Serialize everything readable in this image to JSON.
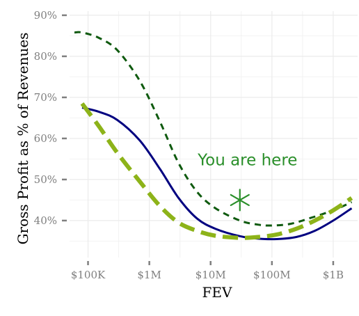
{
  "chart_data": {
    "type": "line",
    "title": "",
    "xlabel": "FEV",
    "ylabel": "Gross Profit as % of Revenues",
    "x_scale": "log10",
    "xlim": [
      50000,
      2500000000
    ],
    "ylim": [
      31,
      91
    ],
    "x_ticks": [
      {
        "value": 100000,
        "label": "$100K"
      },
      {
        "value": 1000000,
        "label": "$1M"
      },
      {
        "value": 10000000,
        "label": "$10M"
      },
      {
        "value": 100000000,
        "label": "$100M"
      },
      {
        "value": 1000000000,
        "label": "$1B"
      }
    ],
    "y_ticks": [
      {
        "value": 40,
        "label": "40%"
      },
      {
        "value": 50,
        "label": "50%"
      },
      {
        "value": 60,
        "label": "60%"
      },
      {
        "value": 70,
        "label": "70%"
      },
      {
        "value": 80,
        "label": "80%"
      },
      {
        "value": 90,
        "label": "90%"
      }
    ],
    "grid": true,
    "series": [
      {
        "style": "dashed",
        "color": "#0f5a0f",
        "x": [
          60000,
          80000,
          150000,
          300000,
          700000,
          1500000,
          3000000,
          6000000,
          12000000,
          30000000,
          60000000,
          100000000,
          200000000,
          400000000,
          1000000000,
          2000000000
        ],
        "y": [
          85.8,
          85.8,
          84.5,
          81.5,
          74,
          64,
          54,
          47,
          43,
          40,
          39,
          38.8,
          39.2,
          40.5,
          42.5,
          44.5
        ]
      },
      {
        "style": "solid",
        "color": "#000080",
        "x": [
          80000,
          150000,
          300000,
          700000,
          1500000,
          3000000,
          6000000,
          12000000,
          30000000,
          60000000,
          120000000,
          250000000,
          500000000,
          1000000000,
          2000000000
        ],
        "y": [
          67.5,
          66.5,
          64.5,
          59.5,
          52.5,
          45.5,
          40.5,
          38,
          36.2,
          35.6,
          35.5,
          36,
          37.5,
          40,
          43
        ]
      },
      {
        "style": "dashed",
        "color": "#8db319",
        "x": [
          80000,
          150000,
          300000,
          700000,
          1500000,
          3000000,
          6000000,
          12000000,
          30000000,
          60000000,
          120000000,
          250000000,
          500000000,
          1000000000,
          2000000000
        ],
        "y": [
          68.5,
          63,
          56.5,
          49.5,
          43.5,
          39.5,
          37.5,
          36.3,
          35.8,
          36,
          36.6,
          38,
          40,
          42.5,
          45.5
        ]
      }
    ],
    "annotations": [
      {
        "text": "You are here",
        "x": 40000000,
        "y": 53.5,
        "color": "#2a8f2a"
      }
    ],
    "markers": [
      {
        "symbol": "asterisk",
        "x": 30000000,
        "y": 45,
        "color": "#2a8f2a"
      }
    ]
  }
}
